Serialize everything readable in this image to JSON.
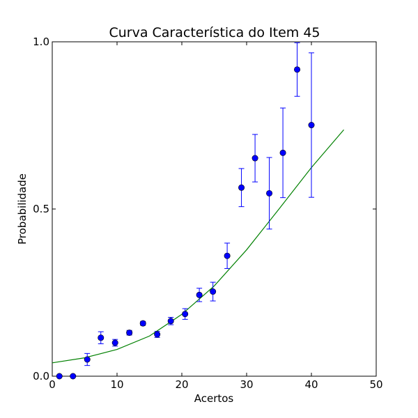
{
  "chart_data": {
    "type": "scatter",
    "title": "Curva Característica do Item 45",
    "xlabel": "Acertos",
    "ylabel": "Probabilidade",
    "xlim": [
      0,
      50
    ],
    "ylim": [
      0,
      1
    ],
    "x_ticks": [
      0,
      10,
      20,
      30,
      40,
      50
    ],
    "x_tick_labels": [
      "0",
      "10",
      "20",
      "30",
      "40",
      "50"
    ],
    "y_ticks": [
      0,
      0.5,
      1
    ],
    "y_tick_labels": [
      "0.0",
      "0.5",
      "1.0"
    ],
    "grid": false,
    "legend": "none",
    "colors": {
      "points": "#0000ff",
      "errorbars": "#0000ff",
      "curve": "#008000"
    },
    "series": [
      {
        "kind": "errorbar",
        "points": [
          {
            "x": 1.1,
            "y": 0.0,
            "err": 0.0
          },
          {
            "x": 3.2,
            "y": 0.0,
            "err": 0.0
          },
          {
            "x": 5.4,
            "y": 0.05,
            "err": 0.018
          },
          {
            "x": 7.5,
            "y": 0.115,
            "err": 0.018
          },
          {
            "x": 9.7,
            "y": 0.1,
            "err": 0.01
          },
          {
            "x": 11.9,
            "y": 0.13,
            "err": 0.007
          },
          {
            "x": 14.0,
            "y": 0.158,
            "err": 0.006
          },
          {
            "x": 16.2,
            "y": 0.125,
            "err": 0.009
          },
          {
            "x": 18.3,
            "y": 0.165,
            "err": 0.011
          },
          {
            "x": 20.5,
            "y": 0.186,
            "err": 0.016
          },
          {
            "x": 22.7,
            "y": 0.243,
            "err": 0.02
          },
          {
            "x": 24.8,
            "y": 0.253,
            "err": 0.028
          },
          {
            "x": 27.0,
            "y": 0.36,
            "err": 0.038
          },
          {
            "x": 29.2,
            "y": 0.564,
            "err": 0.057
          },
          {
            "x": 31.3,
            "y": 0.652,
            "err": 0.071
          },
          {
            "x": 33.5,
            "y": 0.547,
            "err": 0.107
          },
          {
            "x": 35.6,
            "y": 0.668,
            "err": 0.134
          },
          {
            "x": 37.8,
            "y": 0.917,
            "err": 0.08
          },
          {
            "x": 40.0,
            "y": 0.751,
            "err": 0.216
          }
        ]
      },
      {
        "kind": "line",
        "points": [
          {
            "x": 0,
            "y": 0.04
          },
          {
            "x": 5,
            "y": 0.055
          },
          {
            "x": 10,
            "y": 0.08
          },
          {
            "x": 15,
            "y": 0.12
          },
          {
            "x": 20,
            "y": 0.185
          },
          {
            "x": 25,
            "y": 0.27
          },
          {
            "x": 30,
            "y": 0.378
          },
          {
            "x": 35,
            "y": 0.5
          },
          {
            "x": 40,
            "y": 0.624
          },
          {
            "x": 45,
            "y": 0.737
          }
        ]
      }
    ]
  }
}
